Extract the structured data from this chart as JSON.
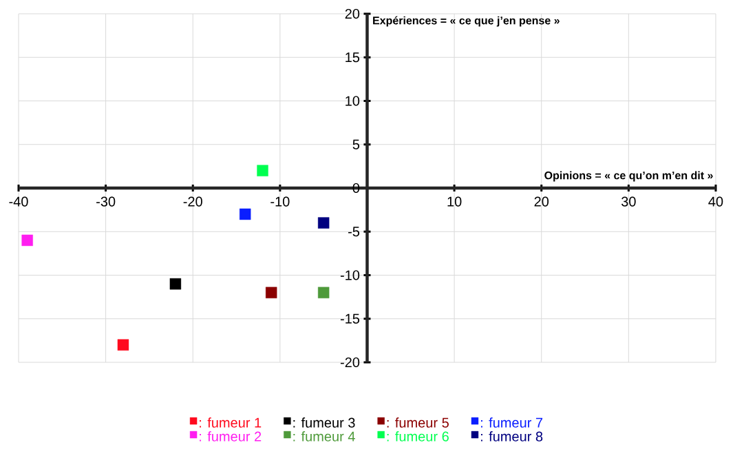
{
  "chart_data": {
    "type": "scatter",
    "xlabel": "Opinions = « ce qu’on m’en dit »",
    "ylabel": "Expériences = « ce que j’en pense »",
    "xlim": [
      -40,
      40
    ],
    "ylim": [
      -20,
      20
    ],
    "xticks": [
      -40,
      -30,
      -20,
      -10,
      10,
      20,
      30,
      40
    ],
    "yticks": [
      -20,
      -15,
      -10,
      -5,
      0,
      5,
      10,
      15,
      20
    ],
    "grid": true,
    "legend": "bottom",
    "marker": "square",
    "series": [
      {
        "name": ": fumeur 1",
        "color": "#ff0a1e",
        "x": [
          -28
        ],
        "values": [
          -18
        ]
      },
      {
        "name": ": fumeur 2",
        "color": "#ff1ef0",
        "x": [
          -39
        ],
        "values": [
          -6
        ]
      },
      {
        "name": ": fumeur 3",
        "color": "#000000",
        "x": [
          -22
        ],
        "values": [
          -11
        ]
      },
      {
        "name": ": fumeur 4",
        "color": "#4e9a3a",
        "x": [
          -5
        ],
        "values": [
          -12
        ]
      },
      {
        "name": ": fumeur 5",
        "color": "#8b0000",
        "x": [
          -11
        ],
        "values": [
          -12
        ]
      },
      {
        "name": ": fumeur 6",
        "color": "#00ff50",
        "x": [
          -12
        ],
        "values": [
          2
        ]
      },
      {
        "name": ": fumeur 7",
        "color": "#0a1eff",
        "x": [
          -14
        ],
        "values": [
          -3
        ]
      },
      {
        "name": ": fumeur 8",
        "color": "#000080",
        "x": [
          -5
        ],
        "values": [
          -4
        ]
      }
    ]
  }
}
